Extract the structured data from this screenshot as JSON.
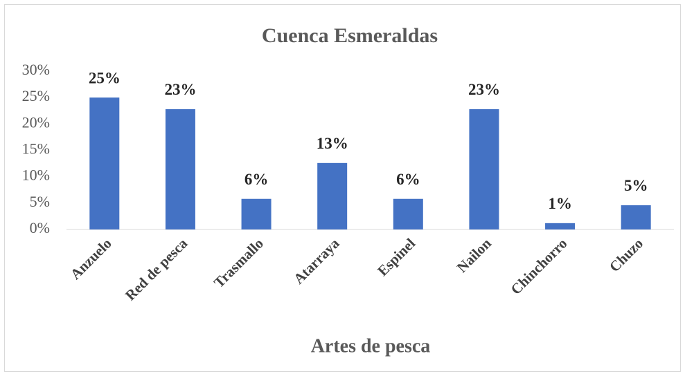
{
  "chart_data": {
    "type": "bar",
    "title": "Cuenca Esmeraldas",
    "x_label": "Artes de pesca",
    "categories": [
      "Anzuelo",
      "Red de pesca",
      "Trasmallo",
      "Atarraya",
      "Espinel",
      "Nailon",
      "Chinchorro",
      "Chuzo"
    ],
    "values": [
      25,
      22.8,
      5.8,
      12.6,
      5.8,
      22.8,
      1.2,
      4.6
    ],
    "value_labels": [
      "25%",
      "23%",
      "6%",
      "13%",
      "6%",
      "23%",
      "1%",
      "5%"
    ],
    "color": "#4472c4",
    "ylim": [
      0,
      30
    ],
    "yticks": [
      {
        "value": 0,
        "label": "0%"
      },
      {
        "value": 5,
        "label": "5%"
      },
      {
        "value": 10,
        "label": "10%"
      },
      {
        "value": 15,
        "label": "15%"
      },
      {
        "value": 20,
        "label": "20%"
      },
      {
        "value": 25,
        "label": "25%"
      },
      {
        "value": 30,
        "label": "30%"
      }
    ],
    "grid": false
  }
}
